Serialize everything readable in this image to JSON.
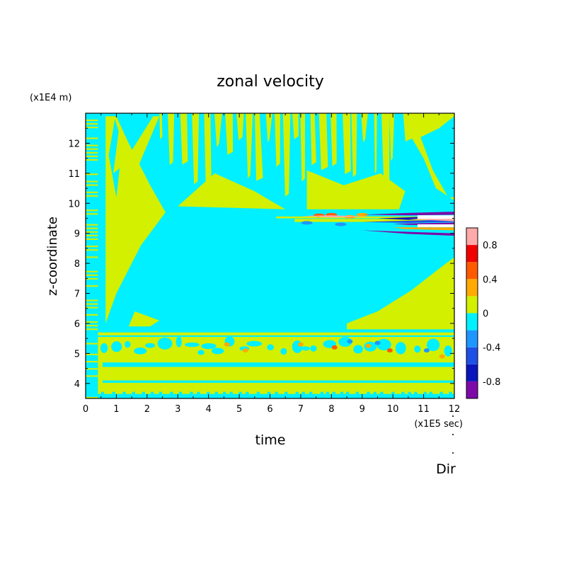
{
  "chart_data": {
    "type": "heatmap",
    "title": "zonal velocity",
    "xlabel": "time",
    "ylabel": "z-coordinate",
    "x_unit": "(x1E5 sec)",
    "y_unit": "(x1E4 m)",
    "xlim": [
      0,
      12
    ],
    "ylim": [
      3.5,
      13
    ],
    "x_ticks": [
      "0",
      "1",
      "2",
      "3",
      "4",
      "5",
      "6",
      "7",
      "8",
      "9",
      "10",
      "11",
      "12"
    ],
    "y_ticks": [
      "4",
      "5",
      "6",
      "7",
      "8",
      "9",
      "10",
      "11",
      "12"
    ],
    "colorbar": {
      "range": [
        -1,
        1
      ],
      "boundaries": [
        -1,
        -0.8,
        -0.6,
        -0.4,
        -0.2,
        0,
        0.2,
        0.4,
        0.6,
        0.8,
        1
      ],
      "tick_labels": [
        "0.8",
        "0.4",
        "0",
        "-0.4",
        "-0.8"
      ],
      "tick_values": [
        0.8,
        0.4,
        0,
        -0.4,
        -0.8
      ],
      "colors": [
        "#7d0aa8",
        "#0a14bc",
        "#1e50e6",
        "#1e96ff",
        "#00f0ff",
        "#d2f000",
        "#ffaa00",
        "#ff5a00",
        "#f00000",
        "#ffaaaa"
      ]
    },
    "regions": [
      {
        "z": "0",
        "value": 0.1,
        "x": [
          0.5,
          2.5
        ],
        "y": [
          5.9,
          12.9
        ]
      },
      {
        "z": "1",
        "value": 0.1,
        "x": [
          8,
          12
        ],
        "y": [
          5.9,
          8.2
        ]
      },
      {
        "z": "2",
        "value": 0.1,
        "x": [
          3,
          10.5
        ],
        "y": [
          9.8,
          12.9
        ]
      },
      {
        "z": "3",
        "value": 0.1,
        "x": [
          0.5,
          12
        ],
        "y": [
          3.6,
          5.6
        ]
      },
      {
        "z": "4",
        "value": 0.3,
        "x": [
          7.5,
          9
        ],
        "y": [
          9.5,
          9.7
        ]
      },
      {
        "z": "5",
        "value": -0.9,
        "x": [
          9,
          12
        ],
        "y": [
          8.9,
          9.7
        ]
      }
    ],
    "annotation": "Dir"
  }
}
